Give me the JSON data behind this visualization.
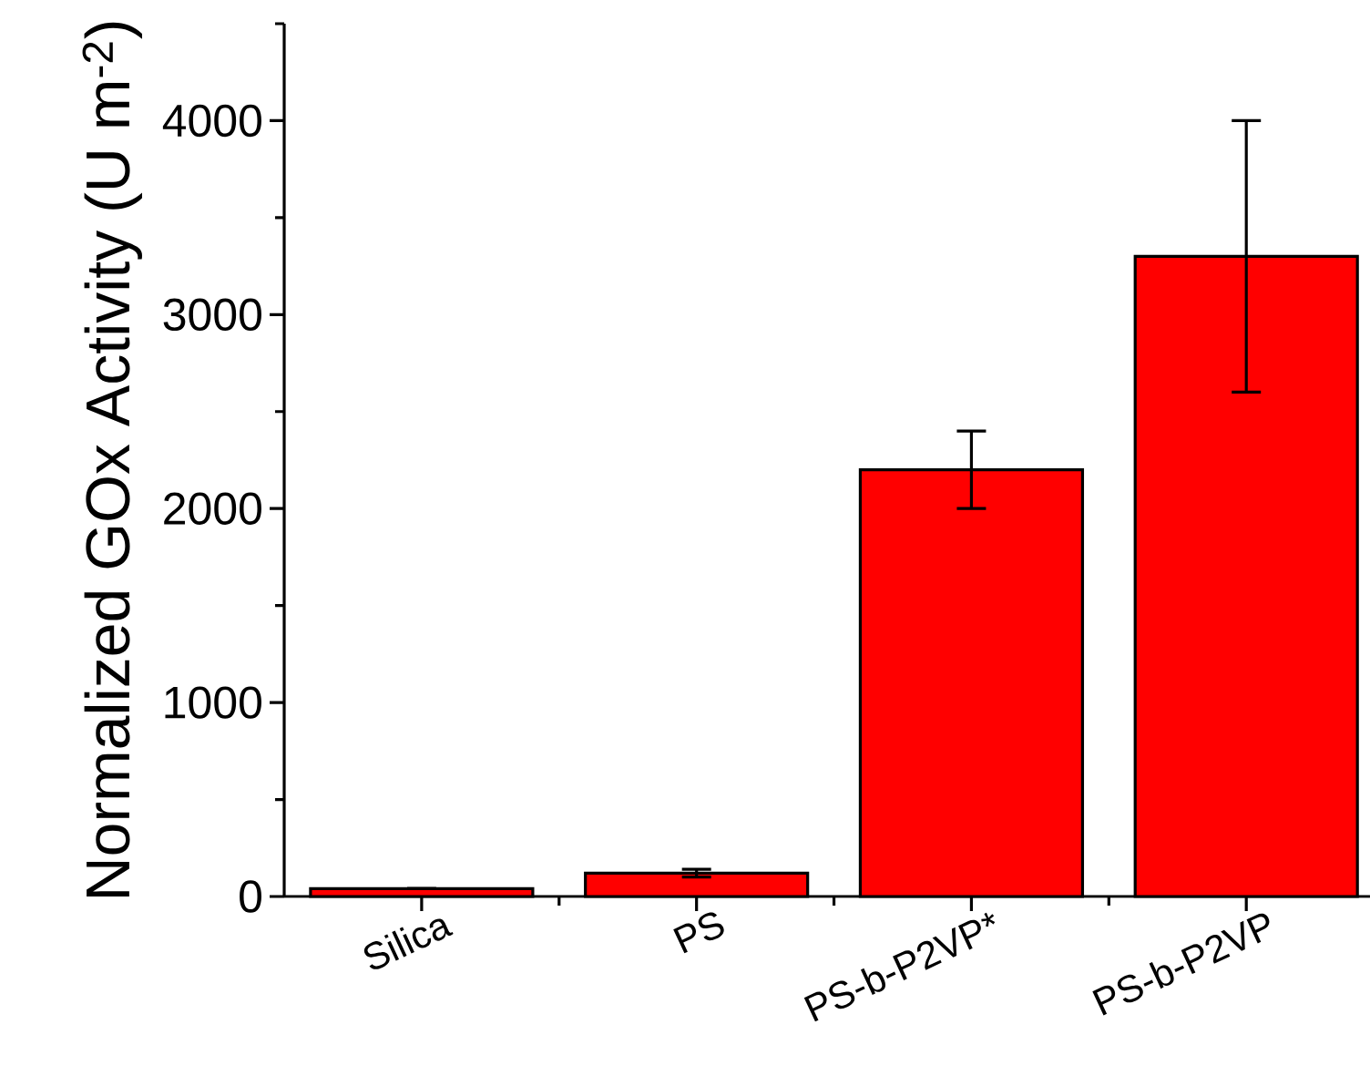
{
  "chart_data": {
    "type": "bar",
    "ylabel": "Normalized GOx Activity (U m$^{-2}$)",
    "categories": [
      "Silica",
      "PS",
      "PS-b-P2VP*",
      "PS-b-P2VP"
    ],
    "values": [
      40,
      120,
      2200,
      3300
    ],
    "errors": [
      null,
      20,
      200,
      700
    ],
    "color": "#ff0000",
    "ylim": [
      0,
      4500
    ],
    "yticks": [
      0,
      1000,
      2000,
      3000,
      4000
    ]
  }
}
